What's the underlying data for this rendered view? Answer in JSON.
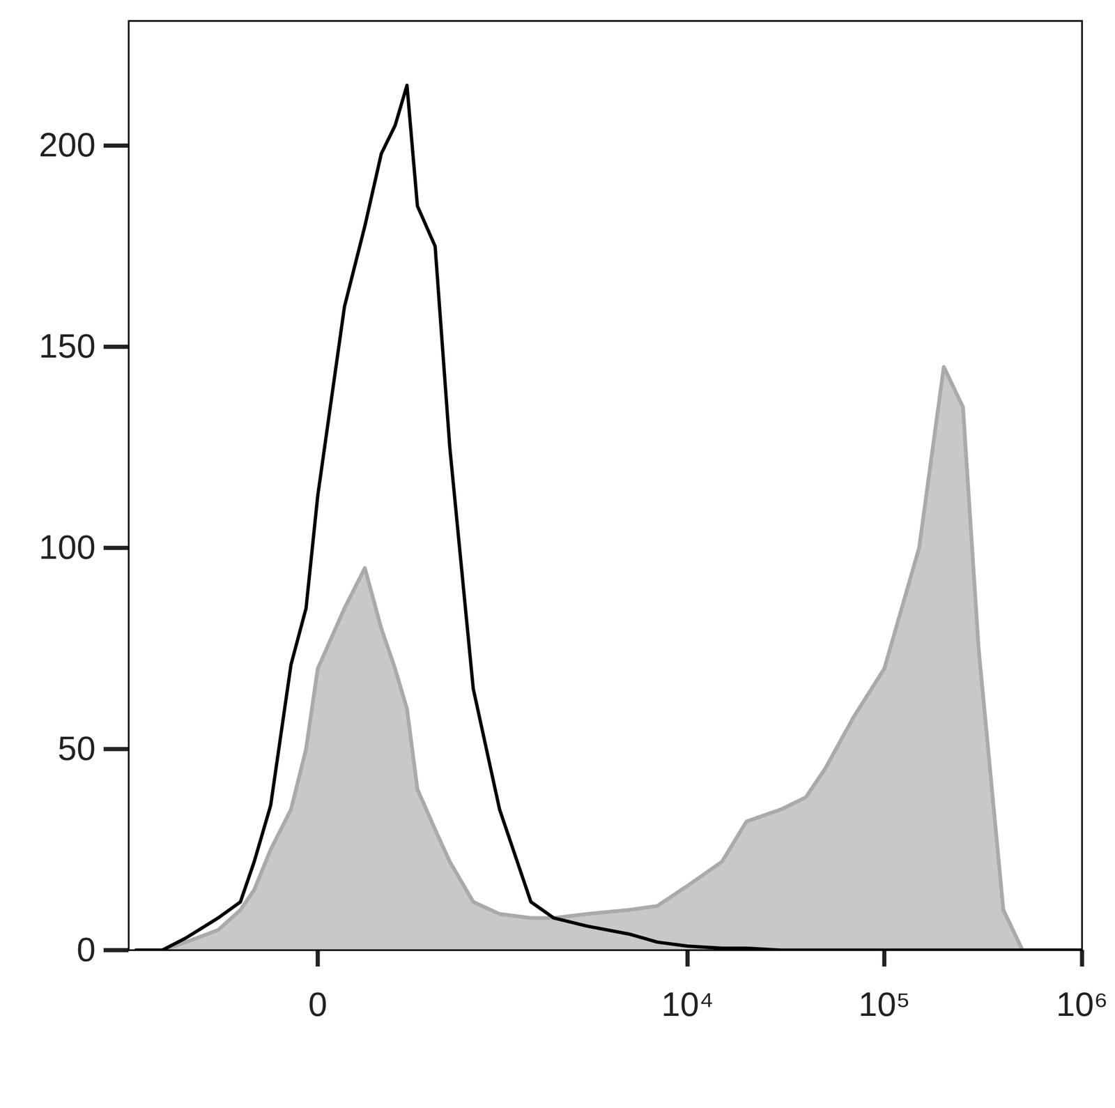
{
  "chart_data": {
    "type": "area",
    "x": [
      -1000,
      -700,
      -500,
      -300,
      -200,
      -150,
      -100,
      -50,
      -20,
      0,
      50,
      100,
      150,
      200,
      250,
      300,
      400,
      500,
      700,
      1000,
      1500,
      2000,
      3000,
      5000,
      7000,
      10000,
      15000,
      20000,
      30000,
      40000,
      50000,
      70000,
      100000,
      150000,
      200000,
      250000,
      300000,
      400000,
      500000,
      700000,
      1000000
    ],
    "series": [
      {
        "type": "area",
        "color": "#c8c8c8",
        "values": [
          0,
          0,
          2,
          5,
          10,
          15,
          25,
          35,
          50,
          70,
          85,
          95,
          80,
          70,
          60,
          40,
          30,
          22,
          12,
          9,
          8,
          8,
          9,
          10,
          11,
          16,
          22,
          32,
          35,
          38,
          45,
          58,
          70,
          100,
          145,
          135,
          75,
          10,
          0,
          0,
          0
        ]
      },
      {
        "type": "line",
        "color": "#000000",
        "values": [
          0,
          0,
          3,
          8,
          12,
          22,
          36,
          71,
          85,
          113,
          160,
          180,
          198,
          205,
          215,
          185,
          175,
          125,
          65,
          35,
          12,
          8,
          6,
          4,
          2,
          1,
          0.5,
          0.5,
          0,
          0,
          0,
          0,
          0,
          0,
          0,
          0,
          0,
          0,
          0,
          0,
          0
        ]
      }
    ],
    "xlim": [
      -1100,
      1000000
    ],
    "xticks": [
      0,
      {
        "value": 10000,
        "label": "10⁴"
      },
      {
        "value": 100000,
        "label": "10⁵"
      },
      {
        "value": 1000000,
        "label": "10⁶"
      }
    ],
    "ylim": [
      0,
      231
    ],
    "yticks": [
      0,
      50,
      100,
      150,
      200
    ],
    "grid": false
  }
}
